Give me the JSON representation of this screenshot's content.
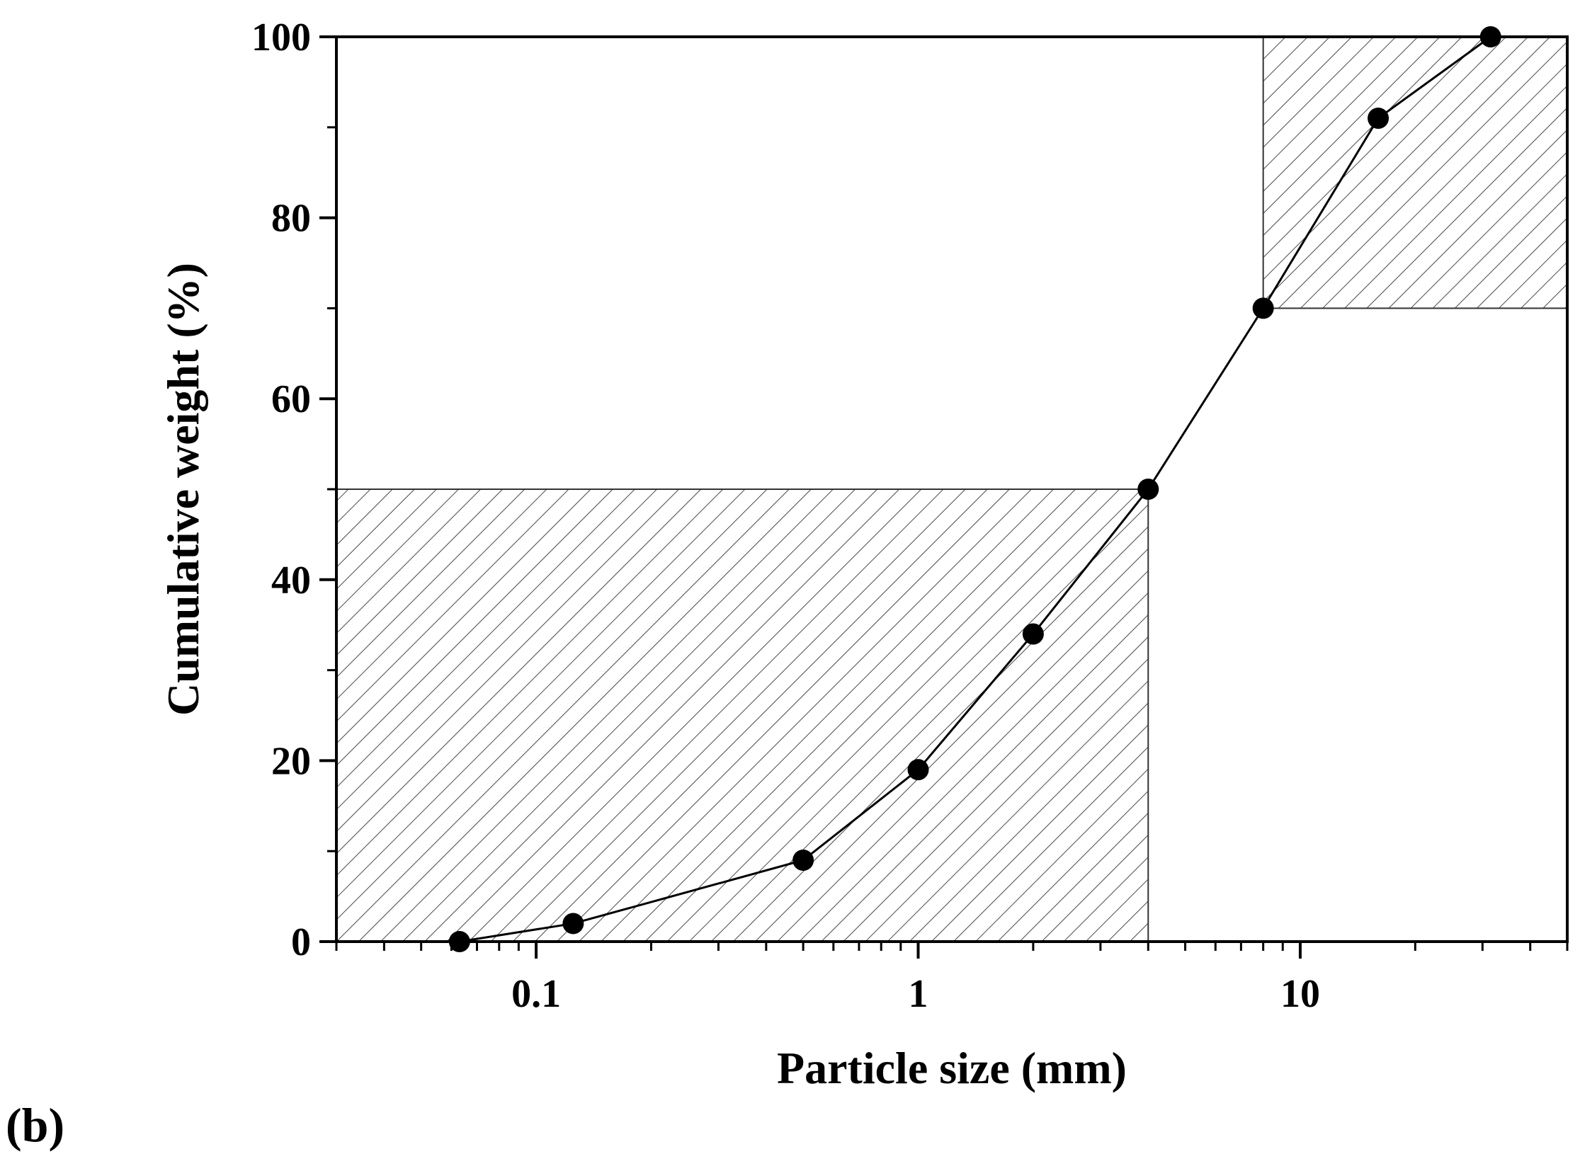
{
  "panel_label": "(b)",
  "chart_data": {
    "type": "line",
    "title": "",
    "xlabel": "Particle size (mm)",
    "ylabel": "Cumulative weight (%)",
    "xscale": "log",
    "xlim": [
      0.03,
      50
    ],
    "ylim": [
      0,
      100
    ],
    "x_ticks": [
      {
        "value": 0.1,
        "label": "0.1"
      },
      {
        "value": 1,
        "label": "1"
      },
      {
        "value": 10,
        "label": "10"
      }
    ],
    "y_ticks": [
      {
        "value": 0,
        "label": "0"
      },
      {
        "value": 20,
        "label": "20"
      },
      {
        "value": 40,
        "label": "40"
      },
      {
        "value": 60,
        "label": "60"
      },
      {
        "value": 80,
        "label": "80"
      },
      {
        "value": 100,
        "label": "100"
      }
    ],
    "grid": false,
    "legend": "none",
    "series": [
      {
        "x": [
          0.063,
          0.125,
          0.5,
          1,
          2,
          4,
          8,
          16,
          31.5
        ],
        "y": [
          0,
          2,
          9,
          19,
          34,
          50,
          70,
          91,
          100
        ],
        "marker": "circle",
        "color": "#000000"
      }
    ],
    "hatched_regions": [
      {
        "x_range": [
          0.03,
          4
        ],
        "y_range": [
          0,
          50
        ]
      },
      {
        "x_range": [
          8,
          50
        ],
        "y_range": [
          70,
          100
        ]
      }
    ]
  }
}
